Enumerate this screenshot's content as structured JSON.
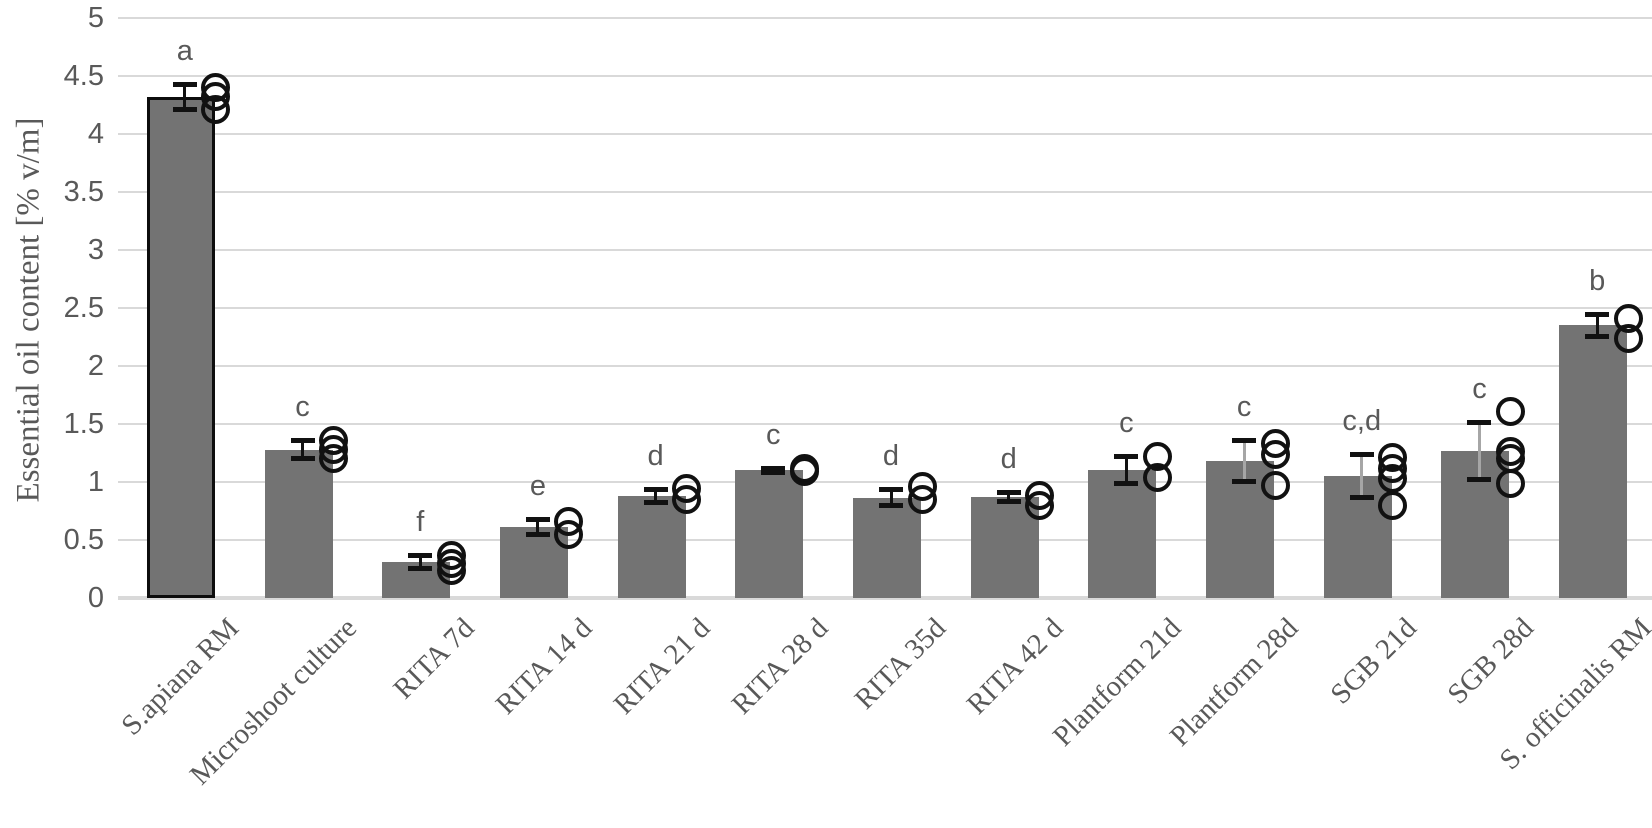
{
  "chart_data": {
    "type": "bar",
    "title": "",
    "xlabel": "",
    "ylabel": "Essential oil content [% v/m]",
    "ylim": [
      0,
      5
    ],
    "ytick_step": 0.5,
    "ytick_labels": [
      "5",
      "4.5",
      "4",
      "3.5",
      "3",
      "2.5",
      "2",
      "1.5",
      "1",
      "0.5",
      "0"
    ],
    "grid": true,
    "legend": "none",
    "bar_fill_color": "#737373",
    "highlight_outline_color": "#0d0d0d",
    "gridline_color": "#d9d9d9",
    "axis_text_color": "#595959",
    "categories": [
      "S.apiana RM",
      "Microshoot culture",
      "RITA 7d",
      "RITA 14 d",
      "RITA 21 d",
      "RITA 28 d",
      "RITA 35d",
      "RITA 42 d",
      "Plantform 21d",
      "Plantform 28d",
      "SGB 21d",
      "SGB 28d",
      "S. officinalis RM"
    ],
    "bars": [
      {
        "label": "S.apiana RM",
        "value": 4.32,
        "err_up": 0.11,
        "err_down": 0.11,
        "letter": "a",
        "points": [
          4.4,
          4.32,
          4.21
        ],
        "outlined": true,
        "err_line": "black"
      },
      {
        "label": "Microshoot culture",
        "value": 1.28,
        "err_up": 0.08,
        "err_down": 0.08,
        "letter": "c",
        "points": [
          1.36,
          1.28,
          1.2
        ],
        "outlined": false,
        "err_line": "black"
      },
      {
        "label": "RITA 7d",
        "value": 0.31,
        "err_up": 0.06,
        "err_down": 0.06,
        "letter": "f",
        "points": [
          0.37,
          0.3,
          0.24
        ],
        "outlined": false,
        "err_line": "black"
      },
      {
        "label": "RITA 14 d",
        "value": 0.61,
        "err_up": 0.07,
        "err_down": 0.07,
        "letter": "e",
        "points": [
          0.66,
          0.55
        ],
        "outlined": false,
        "err_line": "black"
      },
      {
        "label": "RITA 21 d",
        "value": 0.88,
        "err_up": 0.06,
        "err_down": 0.06,
        "letter": "d",
        "points": [
          0.94,
          0.85
        ],
        "outlined": false,
        "err_line": "black"
      },
      {
        "label": "RITA 28 d",
        "value": 1.1,
        "err_up": 0.02,
        "err_down": 0.02,
        "letter": "c",
        "points": [
          1.12,
          1.09
        ],
        "outlined": false,
        "err_line": "black"
      },
      {
        "label": "RITA 35d",
        "value": 0.86,
        "err_up": 0.08,
        "err_down": 0.07,
        "letter": "d",
        "points": [
          0.96,
          0.85
        ],
        "outlined": false,
        "err_line": "black"
      },
      {
        "label": "RITA 42 d",
        "value": 0.87,
        "err_up": 0.04,
        "err_down": 0.04,
        "letter": "d",
        "points": [
          0.88,
          0.8
        ],
        "outlined": false,
        "err_line": "black"
      },
      {
        "label": "Plantform 21d",
        "value": 1.1,
        "err_up": 0.12,
        "err_down": 0.12,
        "letter": "c",
        "points": [
          1.22,
          1.04
        ],
        "outlined": false,
        "err_line": "black"
      },
      {
        "label": "Plantform 28d",
        "value": 1.18,
        "err_up": 0.18,
        "err_down": 0.18,
        "letter": "c",
        "points": [
          1.33,
          1.24,
          0.97
        ],
        "outlined": false,
        "err_line": "gray"
      },
      {
        "label": "SGB 21d",
        "value": 1.05,
        "err_up": 0.19,
        "err_down": 0.19,
        "letter": "c,d",
        "points": [
          1.21,
          1.12,
          1.03,
          0.8
        ],
        "outlined": false,
        "err_line": "gray"
      },
      {
        "label": "SGB 28d",
        "value": 1.27,
        "err_up": 0.25,
        "err_down": 0.25,
        "letter": "c",
        "points": [
          1.61,
          1.26,
          1.2,
          0.99
        ],
        "outlined": false,
        "err_line": "gray"
      },
      {
        "label": "S. officinalis RM",
        "value": 2.35,
        "err_up": 0.1,
        "err_down": 0.1,
        "letter": "b",
        "points": [
          2.41,
          2.24
        ],
        "outlined": false,
        "err_line": "black"
      }
    ]
  }
}
